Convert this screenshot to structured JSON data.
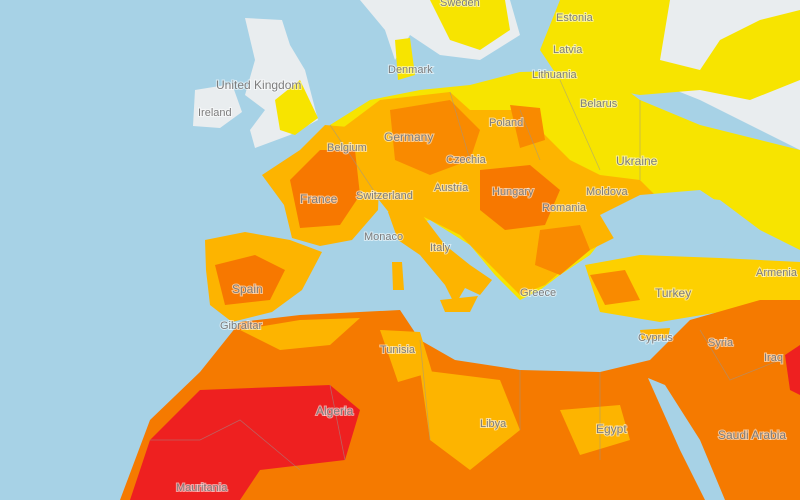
{
  "map": {
    "labels": {
      "sweden": "Sweden",
      "estonia": "Estonia",
      "latvia": "Latvia",
      "lithuania": "Lithuania",
      "denmark": "Denmark",
      "united_kingdom": "United Kingdom",
      "ireland": "Ireland",
      "belarus": "Belarus",
      "poland": "Poland",
      "germany": "Germany",
      "belgium": "Belgium",
      "czechia": "Czechia",
      "ukraine": "Ukraine",
      "france": "France",
      "switzerland": "Switzerland",
      "austria": "Austria",
      "hungary": "Hungary",
      "moldova": "Moldova",
      "romania": "Romania",
      "monaco": "Monaco",
      "italy": "Italy",
      "spain": "Spain",
      "gibraltar": "Gibraltar",
      "greece": "Greece",
      "turkey": "Turkey",
      "armenia": "Armenia",
      "cyprus": "Cyprus",
      "syria": "Syria",
      "iraq": "Iraq",
      "tunisia": "Tunisia",
      "algeria": "Algeria",
      "libya": "Libya",
      "egypt": "Egypt",
      "saudi_arabia": "Saudi Arabia",
      "mauritania": "Mauritania"
    }
  }
}
